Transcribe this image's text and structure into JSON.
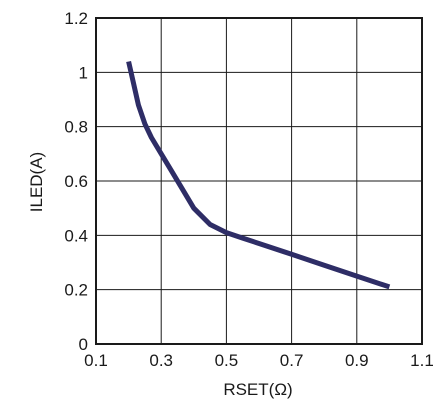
{
  "chart_data": {
    "type": "line",
    "title": "",
    "xlabel": "RSET(Ω)",
    "ylabel": "ILED(A)",
    "xlim": [
      0.1,
      1.1
    ],
    "ylim": [
      0,
      1.2
    ],
    "grid": true,
    "x_ticks": [
      "0.1",
      "0.3",
      "0.5",
      "0.7",
      "0.9",
      "1.1"
    ],
    "x_tick_values": [
      0.1,
      0.3,
      0.5,
      0.7,
      0.9,
      1.1
    ],
    "x_grid_values": [
      0.1,
      0.3,
      0.5,
      0.7,
      0.9,
      1.1
    ],
    "y_ticks": [
      "0",
      "0.2",
      "0.4",
      "0.6",
      "0.8",
      "1",
      "1.2"
    ],
    "y_tick_values": [
      0,
      0.2,
      0.4,
      0.6,
      0.8,
      1,
      1.2
    ],
    "series": [
      {
        "color": "#2e2d66",
        "x": [
          0.2,
          0.215,
          0.23,
          0.25,
          0.27,
          0.3,
          0.33,
          0.36,
          0.4,
          0.45,
          0.5,
          0.55,
          0.6,
          0.7,
          0.8,
          0.9,
          1.0
        ],
        "y": [
          1.04,
          0.96,
          0.88,
          0.81,
          0.76,
          0.7,
          0.64,
          0.58,
          0.5,
          0.44,
          0.41,
          0.39,
          0.37,
          0.33,
          0.29,
          0.25,
          0.21
        ]
      }
    ]
  }
}
